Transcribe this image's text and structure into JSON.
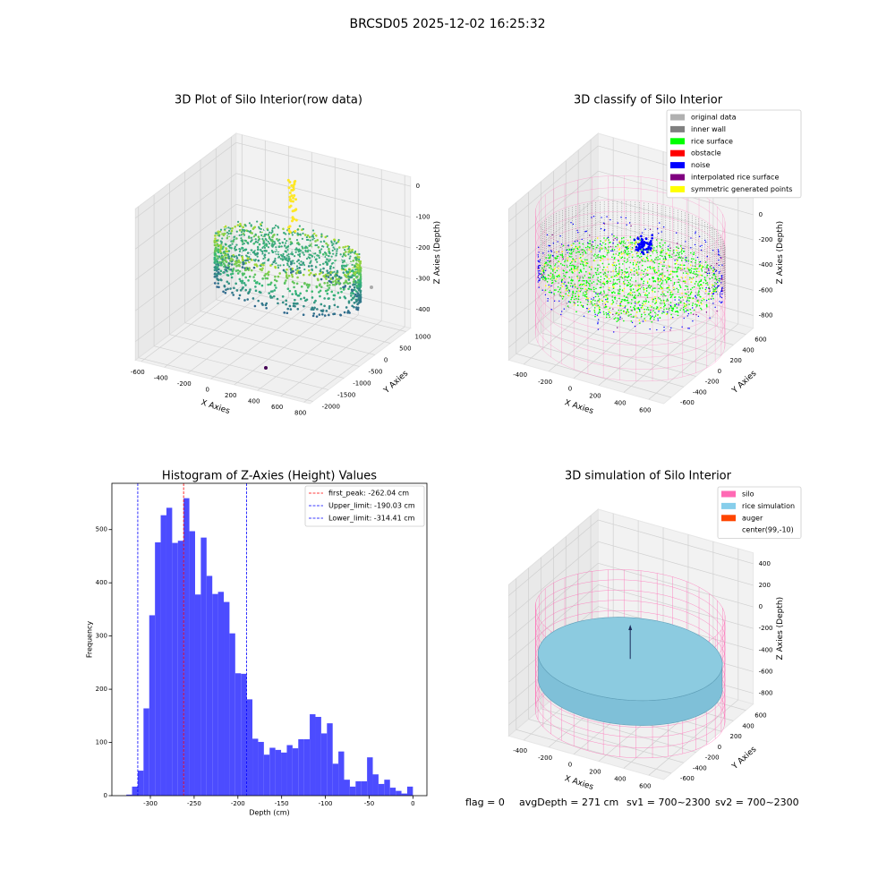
{
  "title": "BRCSD05 2025-12-02 16:25:32",
  "chart_data": [
    {
      "type": "scatter3d",
      "title": "3D Plot of Silo Interior(row data)",
      "xlabel": "X Axies",
      "ylabel": "Y Axies",
      "zlabel": "Z Axies (Depth)",
      "xlim": [
        -650,
        850
      ],
      "ylim": [
        -2100,
        1150
      ],
      "zlim": [
        -460,
        30
      ],
      "xticks": [
        -600,
        -400,
        -200,
        0,
        200,
        400,
        600,
        800
      ],
      "yticks": [
        -2000,
        -1500,
        -1000,
        -500,
        0,
        500,
        1000
      ],
      "zticks": [
        -400,
        -300,
        -200,
        -100,
        0
      ]
    },
    {
      "type": "scatter3d",
      "title": "3D classify of Silo Interior",
      "xlabel": "X Axies",
      "ylabel": "Y Axies",
      "zlabel": "Z Axies (Depth)",
      "xlim": [
        -520,
        720
      ],
      "ylim": [
        -720,
        720
      ],
      "zlim": [
        -900,
        300
      ],
      "xticks": [
        -400,
        -200,
        0,
        200,
        400,
        600
      ],
      "yticks": [
        -600,
        -400,
        -200,
        0,
        200,
        400,
        600
      ],
      "zticks": [
        -800,
        -600,
        -400,
        -200,
        0,
        200
      ],
      "legend": [
        {
          "name": "original data",
          "color": "#b0b0b0"
        },
        {
          "name": "inner wall",
          "color": "#808080"
        },
        {
          "name": "rice surface",
          "color": "#00ff00"
        },
        {
          "name": "obstacle",
          "color": "#ff0000"
        },
        {
          "name": "noise",
          "color": "#0000ff"
        },
        {
          "name": "interpolated rice surface",
          "color": "#800080"
        },
        {
          "name": "symmetric generated points",
          "color": "#ffff00"
        }
      ]
    },
    {
      "type": "histogram",
      "title": "Histogram of Z-Axies (Height) Values",
      "xlabel": "Depth (cm)",
      "ylabel": "Frequency",
      "color": "#4c4cff",
      "bins": [
        -327.5,
        -320.95,
        -314.4,
        -307.85,
        -301.3,
        -294.75,
        -288.2,
        -281.65,
        -275.1,
        -268.55,
        -262,
        -255.45,
        -248.9,
        -242.35,
        -235.8,
        -229.25,
        -222.7,
        -216.15,
        -209.6,
        -203.05,
        -196.5,
        -189.95,
        -183.4,
        -176.85,
        -170.3,
        -163.75,
        -157.2,
        -150.65,
        -144.1,
        -137.55,
        -131,
        -124.45,
        -117.9,
        -111.35,
        -104.8,
        -98.25,
        -91.7,
        -85.15,
        -78.6,
        -72.05,
        -65.5,
        -58.95,
        -52.4,
        -45.85,
        -39.3,
        -32.75,
        -26.2,
        -19.65,
        -13.1,
        -6.55,
        0
      ],
      "values": [
        2,
        17,
        47,
        164,
        339,
        476,
        527,
        541,
        475,
        479,
        559,
        497,
        378,
        485,
        413,
        379,
        383,
        364,
        305,
        230,
        229,
        181,
        107,
        101,
        77,
        90,
        86,
        81,
        95,
        89,
        106,
        106,
        153,
        148,
        117,
        136,
        60,
        83,
        30,
        17,
        27,
        27,
        72,
        40,
        22,
        30,
        15,
        9,
        4,
        17
      ],
      "xlim": [
        -344,
        16
      ],
      "ylim": [
        0,
        587
      ],
      "xticks": [
        -300,
        -250,
        -200,
        -150,
        -100,
        -50,
        0
      ],
      "yticks": [
        0,
        100,
        200,
        300,
        400,
        500
      ],
      "lines": [
        {
          "label": "first_peak: -262.04 cm",
          "value": -262.04,
          "color": "#ff0000"
        },
        {
          "label": "Upper_limit: -190.03 cm",
          "value": -190.03,
          "color": "#0000ff"
        },
        {
          "label": "Lower_limit: -314.41 cm",
          "value": -314.41,
          "color": "#0000ff"
        }
      ],
      "legend": "upper right"
    },
    {
      "type": "surface3d",
      "title": "3D simulation of Silo Interior",
      "xlabel": "X Axies",
      "ylabel": "Y Axies",
      "zlabel": "Z Axies (Depth)",
      "xlim": [
        -520,
        720
      ],
      "ylim": [
        -720,
        720
      ],
      "zlim": [
        -900,
        500
      ],
      "xticks": [
        -400,
        -200,
        0,
        200,
        400,
        600
      ],
      "yticks": [
        -600,
        -400,
        -200,
        0,
        200,
        400,
        600
      ],
      "zticks": [
        -800,
        -600,
        -400,
        -200,
        0,
        200,
        400
      ],
      "legend": [
        {
          "name": "silo",
          "color": "#ff69b4"
        },
        {
          "name": "rice simulation",
          "color": "#87ceeb"
        },
        {
          "name": "auger",
          "color": "#ff4500"
        },
        {
          "name": "center(99,-10)",
          "color": "#ffffff"
        }
      ]
    }
  ],
  "footer": [
    "flag = 0",
    "avgDepth = 271 cm",
    "sv1 = 700~2300",
    "sv2 = 700~2300"
  ]
}
